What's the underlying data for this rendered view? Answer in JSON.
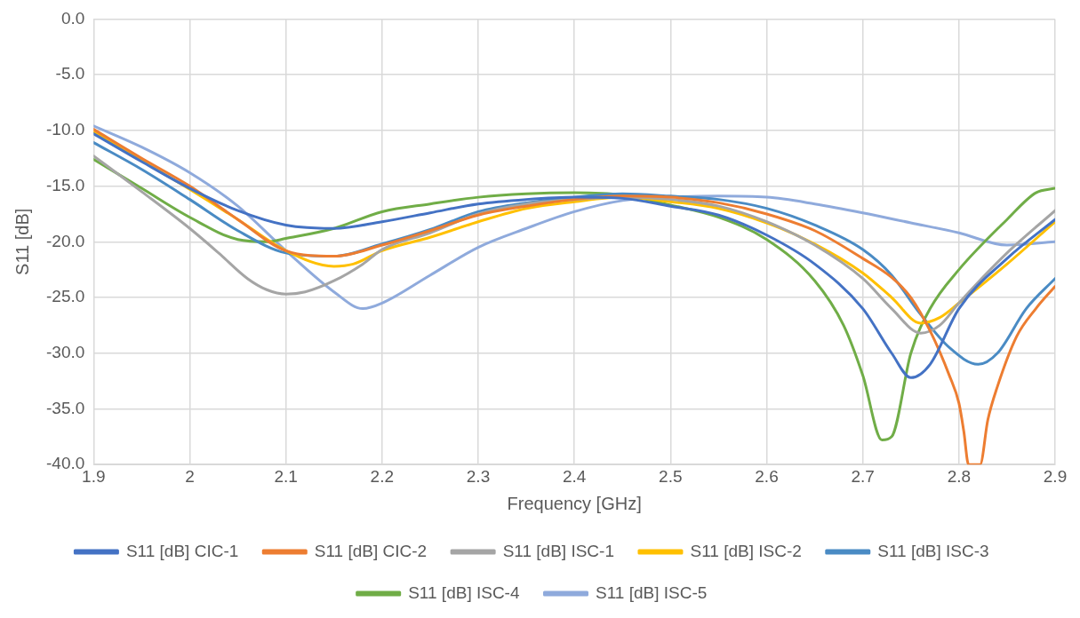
{
  "chart_data": {
    "type": "line",
    "xlabel": "Frequency [GHz]",
    "ylabel": "S11 [dB]",
    "xlim": [
      1.9,
      2.9
    ],
    "xticks": [
      1.9,
      2,
      2.1,
      2.2,
      2.3,
      2.4,
      2.5,
      2.6,
      2.7,
      2.8,
      2.9
    ],
    "ylim": [
      -40,
      0
    ],
    "yticks": [
      {
        "value": 0,
        "label": "0.0"
      },
      {
        "value": -5,
        "label": "-5.0"
      },
      {
        "value": -10,
        "label": "-10.0"
      },
      {
        "value": -15,
        "label": "-15.0"
      },
      {
        "value": -20,
        "label": "-20.0"
      },
      {
        "value": -25,
        "label": "-25.0"
      },
      {
        "value": -30,
        "label": "-30.0"
      },
      {
        "value": -35,
        "label": "-35.0"
      },
      {
        "value": -40,
        "label": "-40.0"
      }
    ],
    "grid": true,
    "legend": "bottom",
    "marker": "none",
    "line_style": "solid",
    "series": [
      {
        "name": "S11 [dB] CIC-1",
        "color": "#4472c4",
        "x": [
          1.9,
          1.95,
          2.0,
          2.05,
          2.1,
          2.15,
          2.2,
          2.25,
          2.3,
          2.35,
          2.4,
          2.45,
          2.5,
          2.55,
          2.6,
          2.65,
          2.7,
          2.73,
          2.75,
          2.77,
          2.8,
          2.85,
          2.9
        ],
        "values": [
          -10.3,
          -12.8,
          -15.2,
          -17.2,
          -18.5,
          -18.8,
          -18.2,
          -17.4,
          -16.6,
          -16.2,
          -16.0,
          -16.1,
          -16.8,
          -17.6,
          -19.4,
          -22.0,
          -26.0,
          -30.0,
          -32.2,
          -31.0,
          -26.0,
          -21.5,
          -18.0
        ]
      },
      {
        "name": "S11 [dB] CIC-2",
        "color": "#ed7d31",
        "x": [
          1.9,
          1.95,
          2.0,
          2.05,
          2.1,
          2.15,
          2.2,
          2.25,
          2.3,
          2.35,
          2.4,
          2.45,
          2.5,
          2.55,
          2.6,
          2.65,
          2.7,
          2.73,
          2.75,
          2.77,
          2.79,
          2.8,
          2.805,
          2.81,
          2.822,
          2.83,
          2.84,
          2.86,
          2.88,
          2.9
        ],
        "values": [
          -9.9,
          -12.5,
          -15.0,
          -18.0,
          -20.8,
          -21.3,
          -20.3,
          -19.0,
          -17.6,
          -16.8,
          -16.2,
          -15.9,
          -16.0,
          -16.5,
          -17.5,
          -19.0,
          -21.5,
          -23.2,
          -25.0,
          -28.0,
          -32.0,
          -34.5,
          -37.0,
          -40,
          -40,
          -36.0,
          -33.0,
          -28.5,
          -26.0,
          -24.0
        ]
      },
      {
        "name": "S11 [dB] ISC-1",
        "color": "#a5a5a5",
        "x": [
          1.9,
          1.95,
          2.0,
          2.03,
          2.06,
          2.08,
          2.1,
          2.12,
          2.15,
          2.18,
          2.2,
          2.25,
          2.3,
          2.35,
          2.4,
          2.45,
          2.5,
          2.55,
          2.6,
          2.65,
          2.7,
          2.73,
          2.76,
          2.78,
          2.8,
          2.85,
          2.9
        ],
        "values": [
          -12.3,
          -15.5,
          -18.8,
          -21.0,
          -23.3,
          -24.3,
          -24.7,
          -24.5,
          -23.5,
          -22.0,
          -20.7,
          -19.2,
          -17.5,
          -16.6,
          -16.2,
          -16.0,
          -16.2,
          -16.8,
          -18.2,
          -20.3,
          -23.3,
          -26.0,
          -28.2,
          -27.5,
          -25.5,
          -21.0,
          -17.2
        ]
      },
      {
        "name": "S11 [dB] ISC-2",
        "color": "#ffc000",
        "x": [
          1.9,
          1.95,
          2.0,
          2.05,
          2.1,
          2.15,
          2.17,
          2.2,
          2.25,
          2.3,
          2.35,
          2.4,
          2.45,
          2.5,
          2.55,
          2.6,
          2.65,
          2.7,
          2.73,
          2.76,
          2.78,
          2.8,
          2.85,
          2.9
        ],
        "values": [
          -10.1,
          -12.7,
          -15.3,
          -18.0,
          -20.8,
          -22.2,
          -22.0,
          -20.8,
          -19.6,
          -18.2,
          -17.0,
          -16.4,
          -16.0,
          -16.4,
          -17.0,
          -18.3,
          -20.2,
          -22.8,
          -25.0,
          -27.3,
          -26.8,
          -25.5,
          -22.0,
          -18.2
        ]
      },
      {
        "name": "S11 [dB] ISC-3",
        "color": "#4a8bc4",
        "x": [
          1.9,
          1.95,
          2.0,
          2.05,
          2.1,
          2.15,
          2.2,
          2.25,
          2.3,
          2.35,
          2.4,
          2.45,
          2.5,
          2.55,
          2.6,
          2.65,
          2.7,
          2.73,
          2.76,
          2.79,
          2.82,
          2.84,
          2.87,
          2.9
        ],
        "values": [
          -11.1,
          -13.5,
          -16.2,
          -19.0,
          -21.0,
          -21.3,
          -20.2,
          -18.9,
          -17.3,
          -16.5,
          -16.0,
          -15.7,
          -15.9,
          -16.2,
          -17.0,
          -18.5,
          -20.7,
          -23.0,
          -26.5,
          -29.5,
          -31.0,
          -30.0,
          -26.0,
          -23.3
        ]
      },
      {
        "name": "S11 [dB] ISC-4",
        "color": "#70ad47",
        "x": [
          1.9,
          1.95,
          2.0,
          2.05,
          2.08,
          2.1,
          2.15,
          2.2,
          2.25,
          2.3,
          2.35,
          2.4,
          2.45,
          2.5,
          2.55,
          2.6,
          2.65,
          2.68,
          2.7,
          2.72,
          2.73,
          2.75,
          2.77,
          2.8,
          2.85,
          2.88,
          2.9
        ],
        "values": [
          -12.6,
          -15.2,
          -17.8,
          -19.8,
          -20.0,
          -19.7,
          -18.8,
          -17.3,
          -16.6,
          -16.0,
          -15.7,
          -15.6,
          -15.8,
          -16.7,
          -17.8,
          -19.8,
          -23.5,
          -27.5,
          -32.0,
          -37.8,
          -37.5,
          -30.0,
          -26.0,
          -22.5,
          -18.0,
          -15.6,
          -15.2
        ]
      },
      {
        "name": "S11 [dB] ISC-5",
        "color": "#8faadc",
        "x": [
          1.9,
          1.95,
          2.0,
          2.05,
          2.1,
          2.15,
          2.18,
          2.2,
          2.25,
          2.3,
          2.35,
          2.4,
          2.45,
          2.5,
          2.55,
          2.6,
          2.65,
          2.7,
          2.75,
          2.8,
          2.85,
          2.9
        ],
        "values": [
          -9.6,
          -11.5,
          -13.8,
          -16.8,
          -20.8,
          -24.5,
          -26.0,
          -25.5,
          -23.0,
          -20.5,
          -18.8,
          -17.3,
          -16.3,
          -16.0,
          -15.9,
          -16.0,
          -16.6,
          -17.4,
          -18.3,
          -19.2,
          -20.3,
          -20.0
        ]
      }
    ]
  }
}
